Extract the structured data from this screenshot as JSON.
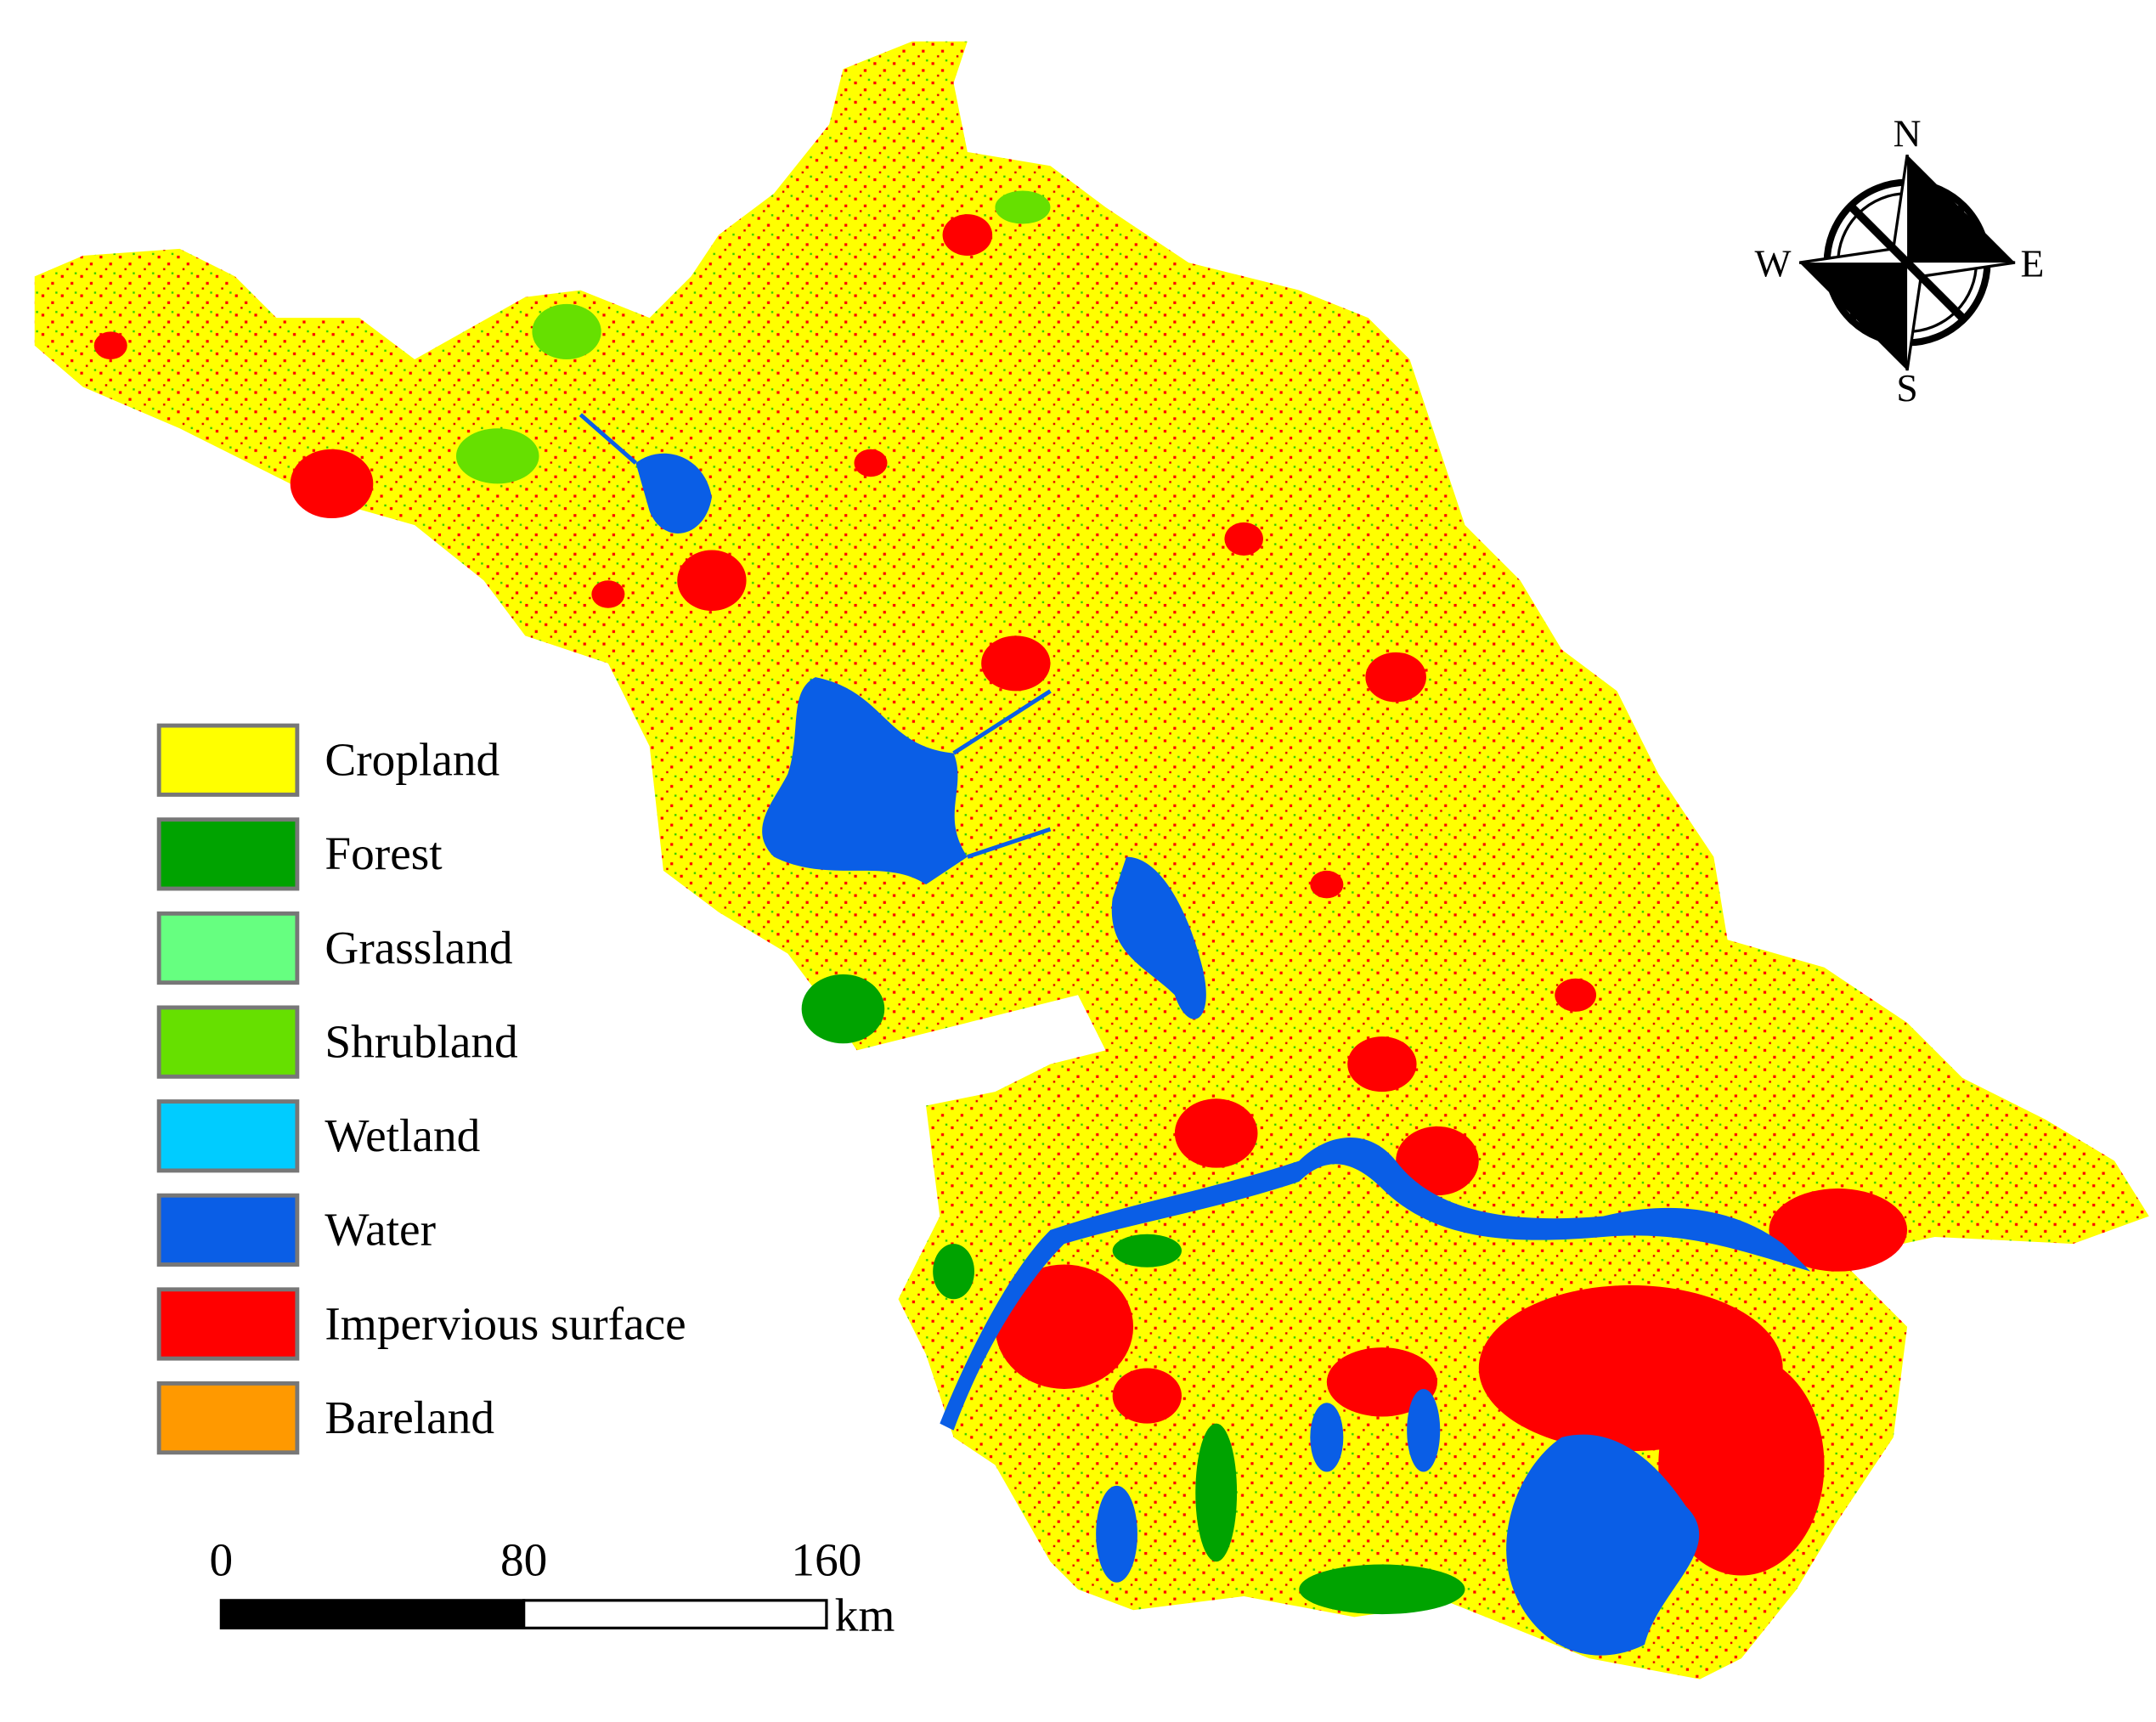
{
  "legend": {
    "items": [
      {
        "name": "Cropland",
        "color": "#ffff00"
      },
      {
        "name": "Forest",
        "color": "#00a300"
      },
      {
        "name": "Grassland",
        "color": "#66ff80"
      },
      {
        "name": "Shrubland",
        "color": "#66e000"
      },
      {
        "name": "Wetland",
        "color": "#00ccff"
      },
      {
        "name": "Water",
        "color": "#0a5ee6"
      },
      {
        "name": "Impervious surface",
        "color": "#ff0000"
      },
      {
        "name": "Bareland",
        "color": "#ff9900"
      }
    ]
  },
  "compass": {
    "north": "N",
    "south": "S",
    "west": "W",
    "east": "E"
  },
  "scale_bar": {
    "ticks": [
      0,
      80,
      160
    ],
    "unit": "km"
  }
}
